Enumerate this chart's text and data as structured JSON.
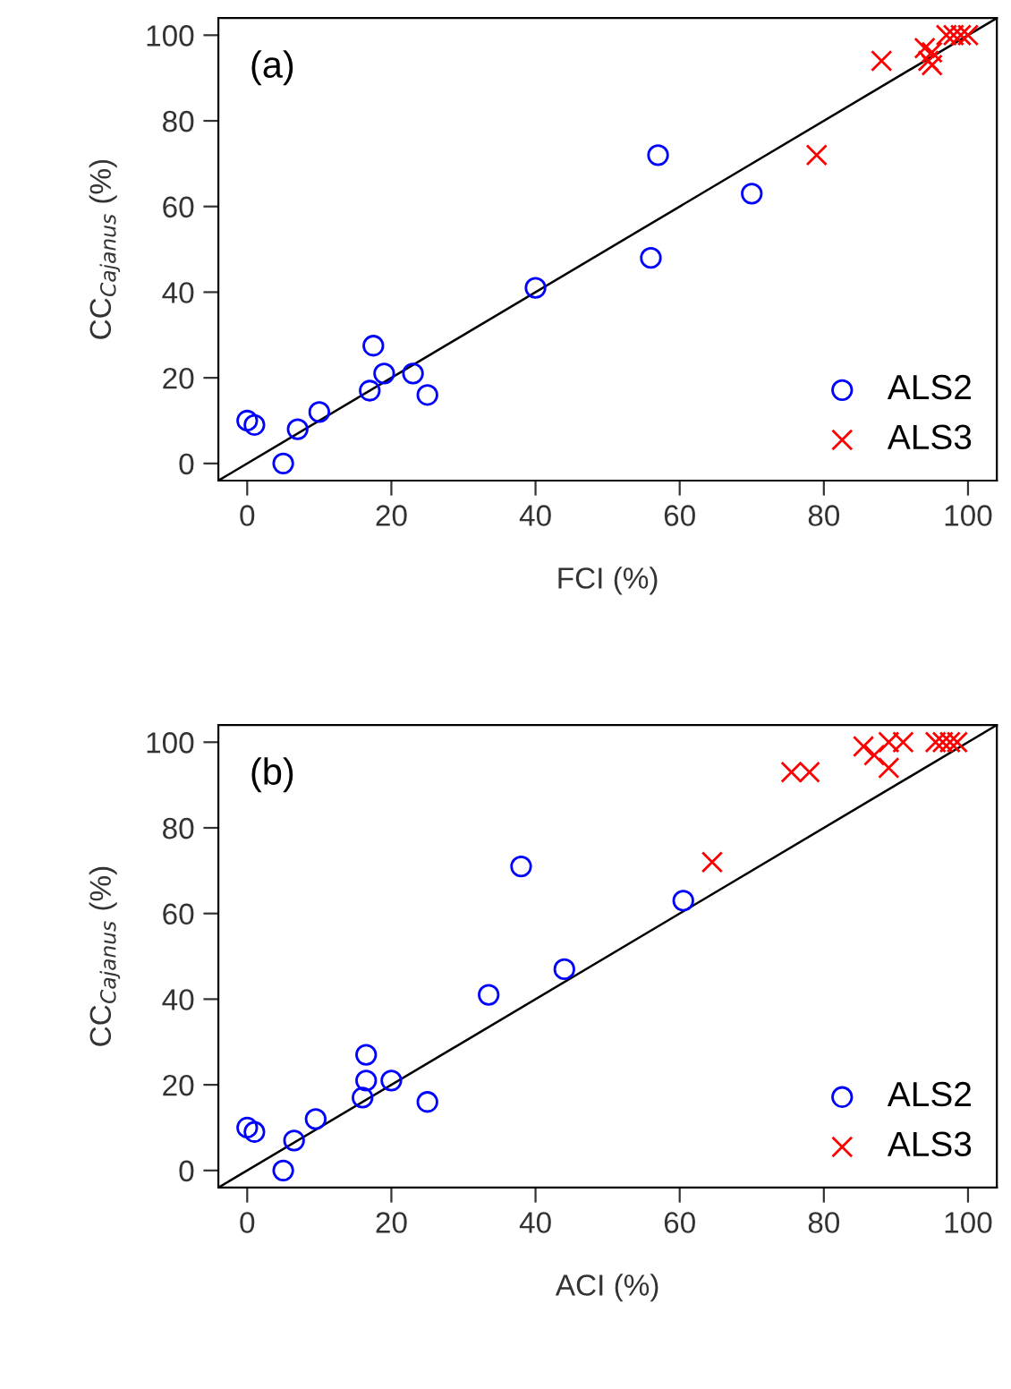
{
  "chart_data": [
    {
      "type": "scatter",
      "xlabel": "FCI (%)",
      "ylabel": "CC$_{Cajanus}$ (%)",
      "annotations": [
        "(a)"
      ],
      "xlim": [
        -4,
        104
      ],
      "ylim": [
        -4,
        104
      ],
      "xticks": [
        0,
        20,
        40,
        60,
        80,
        100
      ],
      "yticks": [
        0,
        20,
        40,
        60,
        80,
        100
      ],
      "grid": false,
      "legend": "bottom right",
      "series": [
        {
          "name": "ALS2",
          "color": "#0000ff",
          "marker": "circle",
          "x": [
            0,
            1,
            5,
            7,
            10,
            17,
            17.5,
            19,
            23,
            25,
            40,
            56,
            57,
            70
          ],
          "values": [
            10,
            9,
            0,
            8,
            12,
            17,
            27.5,
            21,
            21,
            16,
            41,
            48,
            72,
            63
          ]
        },
        {
          "name": "ALS3",
          "color": "#ff0000",
          "marker": "cross",
          "x": [
            79,
            88,
            94,
            94.5,
            95,
            95,
            97,
            98,
            99,
            100
          ],
          "values": [
            72,
            94,
            97,
            94,
            93,
            96,
            100,
            100,
            100,
            100
          ]
        },
        {
          "type": "line",
          "color": "#000000",
          "marker": "none",
          "x": [
            -4,
            104
          ],
          "values": [
            -4,
            104
          ]
        }
      ]
    },
    {
      "type": "scatter",
      "xlabel": "ACI (%)",
      "ylabel": "CC$_{Cajanus}$ (%)",
      "annotations": [
        "(b)"
      ],
      "xlim": [
        -4,
        104
      ],
      "ylim": [
        -4,
        104
      ],
      "xticks": [
        0,
        20,
        40,
        60,
        80,
        100
      ],
      "yticks": [
        0,
        20,
        40,
        60,
        80,
        100
      ],
      "grid": false,
      "legend": "bottom right",
      "series": [
        {
          "name": "ALS2",
          "color": "#0000ff",
          "marker": "circle",
          "x": [
            0,
            1,
            5,
            6.5,
            9.5,
            16,
            16.5,
            16.5,
            20,
            25,
            33.5,
            38,
            44,
            60.5
          ],
          "values": [
            10,
            9,
            0,
            7,
            12,
            17,
            21,
            27,
            21,
            16,
            41,
            71,
            47,
            63
          ]
        },
        {
          "name": "ALS3",
          "color": "#ff0000",
          "marker": "cross",
          "x": [
            64.5,
            75.5,
            78,
            85.5,
            87,
            89,
            89,
            91,
            95.5,
            96.5,
            97.5,
            98.5
          ],
          "values": [
            72,
            93,
            93,
            99,
            97,
            94,
            100,
            100,
            100,
            100,
            100,
            100
          ]
        },
        {
          "type": "line",
          "color": "#000000",
          "marker": "none",
          "x": [
            -4,
            104
          ],
          "values": [
            -4,
            104
          ]
        }
      ]
    }
  ]
}
